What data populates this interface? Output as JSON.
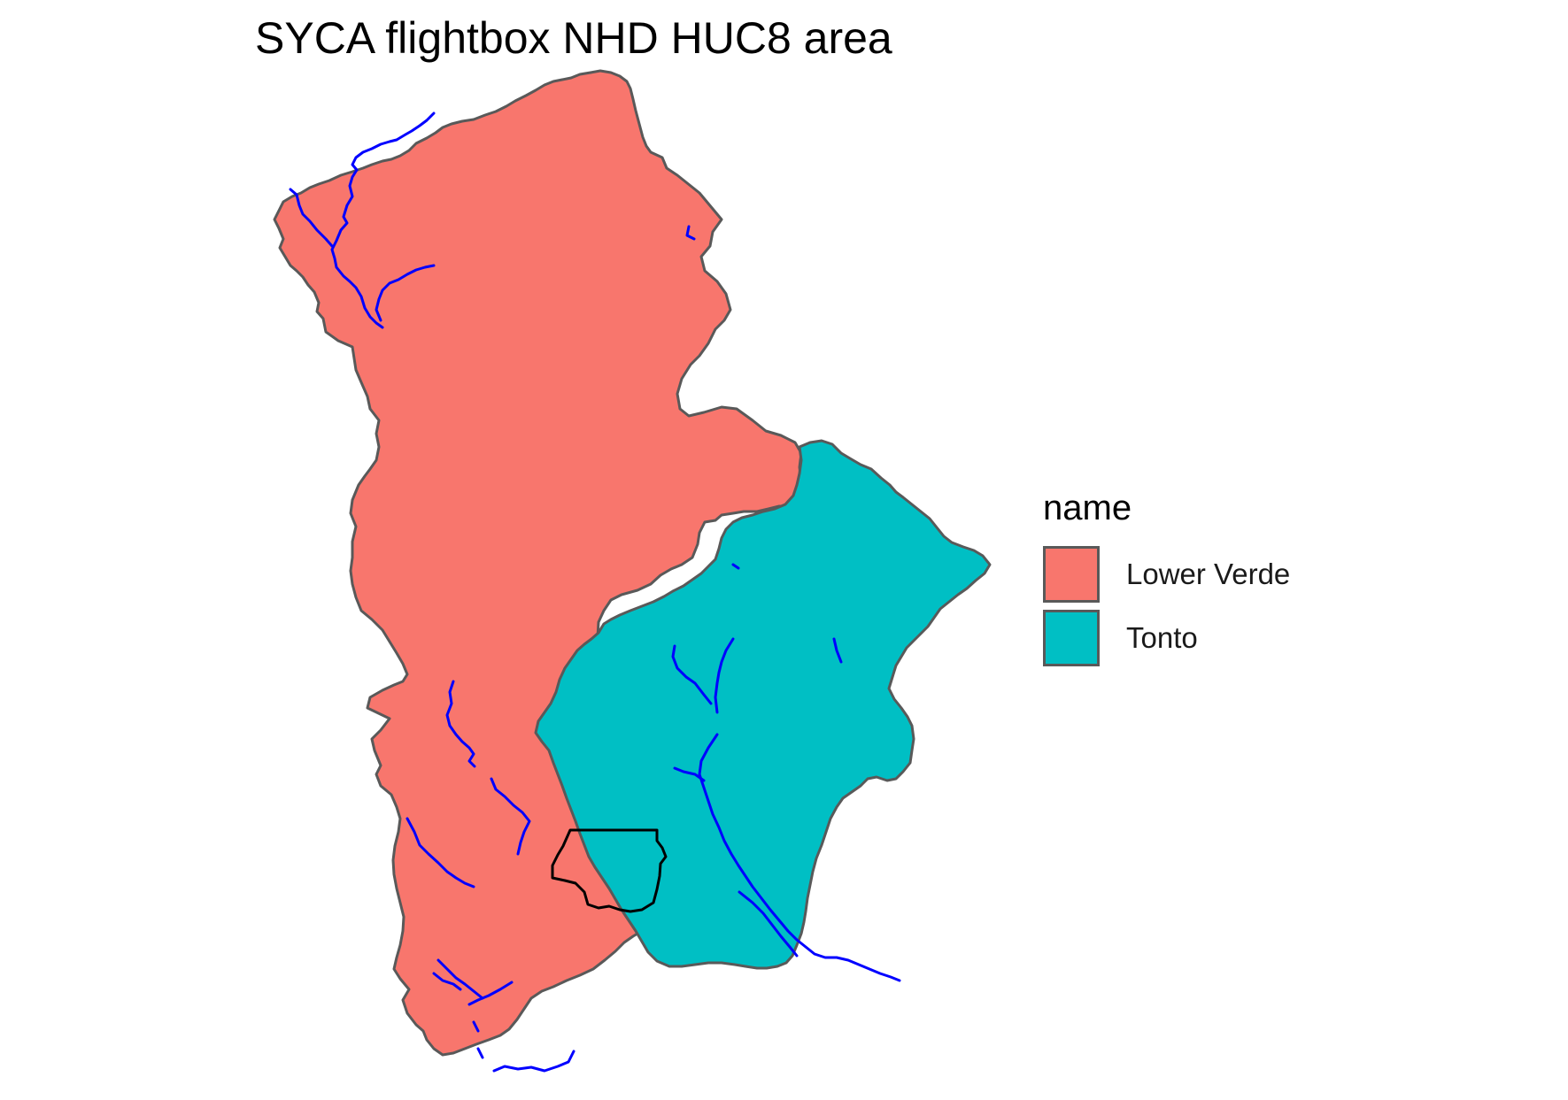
{
  "title": "SYCA flightbox NHD HUC8 area",
  "legend": {
    "title": "name",
    "items": [
      {
        "label": "Lower Verde",
        "color": "#F8766D"
      },
      {
        "label": "Tonto",
        "color": "#00BFC4"
      }
    ]
  },
  "colors": {
    "watershed_outline": "#595959",
    "flowline": "#0000FF",
    "flightbox_outline": "#000000"
  }
}
